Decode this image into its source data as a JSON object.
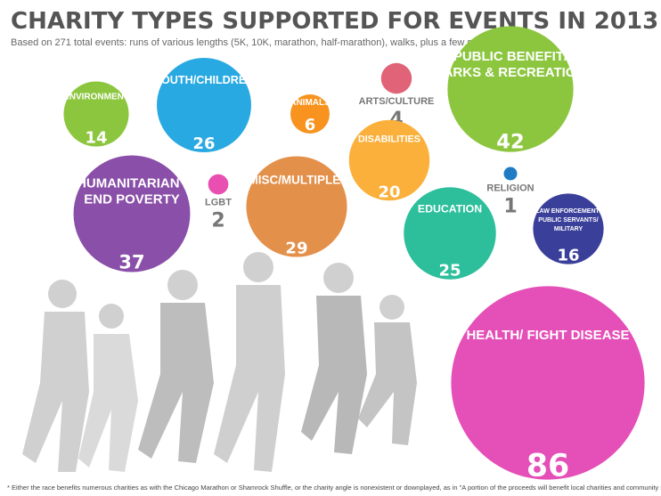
{
  "chart_data": {
    "type": "bubble",
    "title": "CHARITY TYPES SUPPORTED FOR EVENTS IN 2013",
    "subtitle": "Based on 271 total events: runs of various lengths (5K, 10K, marathon, half-marathon), walks, plus a few stair climbs",
    "footnote": "* Either the race benefits numerous charities as with the Chicago Marathon or Shamrock Shuffle, or the charity angle is nonexistent or downplayed, as in \"A portion of the proceeds will benefit local charities and community service organizations\"",
    "categories": [
      [
        "ENVIRONMENT"
      ],
      [
        "YOUTH/CHILDREN"
      ],
      [
        "ANIMALS"
      ],
      [
        "ARTS/CULTURE"
      ],
      [
        "PUBLIC BENEFIT/",
        "PARKS & RECREATION"
      ],
      [
        "DISABILITIES"
      ],
      [
        "HUMANITARIAN /",
        "END POVERTY"
      ],
      [
        "LGBT"
      ],
      [
        "MISC/MULTIPLE*"
      ],
      [
        "RELIGION"
      ],
      [
        "EDUCATION"
      ],
      [
        "LAW ENFORCEMENT/",
        "PUBLIC SERVANTS/",
        "MILITARY"
      ],
      [
        "HEALTH/ FIGHT DISEASE"
      ]
    ],
    "values": [
      14,
      26,
      6,
      4,
      42,
      20,
      37,
      2,
      29,
      1,
      25,
      16,
      86
    ],
    "colors": [
      "#8cc63f",
      "#29a9e1",
      "#f7931e",
      "#e06377",
      "#8cc63f",
      "#fbb03b",
      "#8a4fa8",
      "#e94fb0",
      "#e3904a",
      "#1e7bc4",
      "#2dbf9b",
      "#3a3f9a",
      "#e44fb8"
    ]
  }
}
